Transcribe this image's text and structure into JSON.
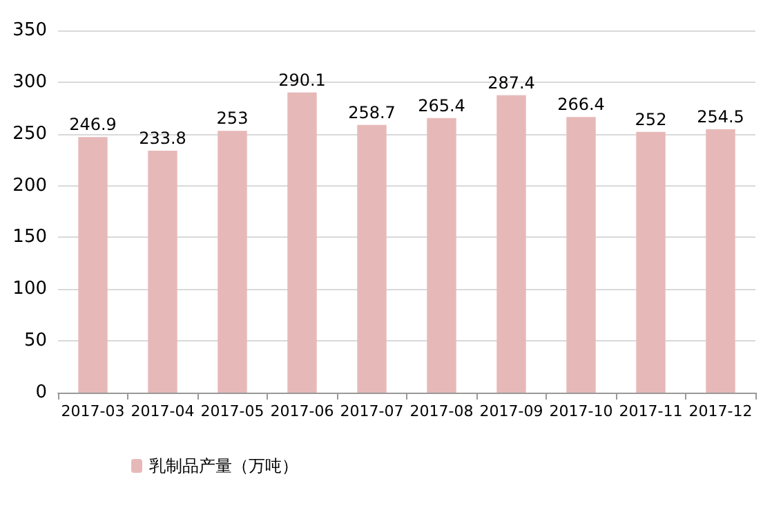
{
  "chart_data": {
    "type": "bar",
    "categories": [
      "2017-03",
      "2017-04",
      "2017-05",
      "2017-06",
      "2017-07",
      "2017-08",
      "2017-09",
      "2017-10",
      "2017-11",
      "2017-12"
    ],
    "series": [
      {
        "name": "乳制品产量（万吨）",
        "color": "#e6b9b8",
        "values": [
          246.9,
          233.8,
          253,
          290.1,
          258.7,
          265.4,
          287.4,
          266.4,
          252,
          254.5
        ]
      }
    ],
    "ylim": [
      0,
      350
    ],
    "yticks": [
      0,
      50,
      100,
      150,
      200,
      250,
      300,
      350
    ],
    "grid": "y",
    "data_labels": true,
    "legend": "bottom left"
  }
}
